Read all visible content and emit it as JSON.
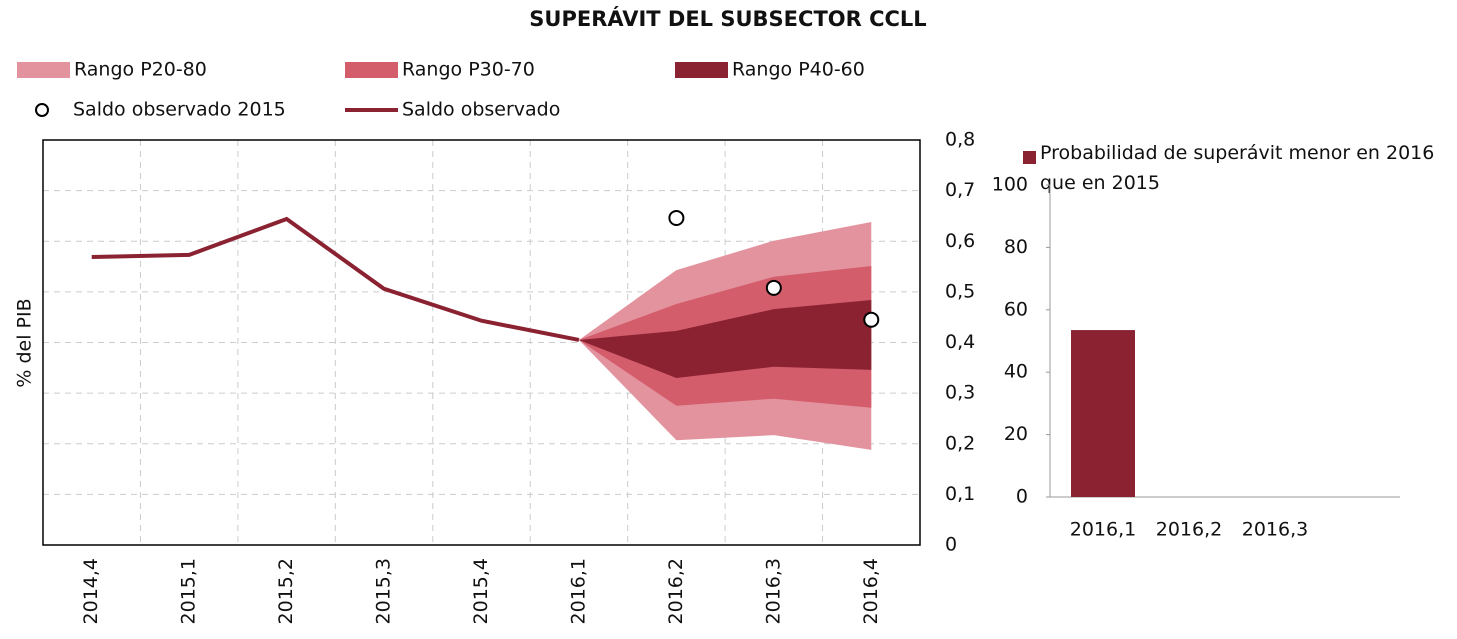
{
  "chart_data": [
    {
      "type": "fan",
      "title": "SUPERÁVIT DEL SUBSECTOR CCLL",
      "ylabel": "% del PIB",
      "categories": [
        "2014,4",
        "2015,1",
        "2015,2",
        "2015,3",
        "2015,4",
        "2016,1",
        "2016,2",
        "2016,3",
        "2016,4"
      ],
      "ylim": [
        0,
        0.8
      ],
      "yticks": [
        {
          "value": 0,
          "label": "0"
        },
        {
          "value": 0.1,
          "label": "0,1"
        },
        {
          "value": 0.2,
          "label": "0,2"
        },
        {
          "value": 0.3,
          "label": "0,3"
        },
        {
          "value": 0.4,
          "label": "0,4"
        },
        {
          "value": 0.5,
          "label": "0,5"
        },
        {
          "value": 0.6,
          "label": "0,6"
        },
        {
          "value": 0.7,
          "label": "0,7"
        },
        {
          "value": 0.8,
          "label": "0,8"
        }
      ],
      "grid": true,
      "series": [
        {
          "name": "Rango P20-80",
          "type": "range",
          "color": "#e3939e",
          "upper": [
            null,
            null,
            null,
            null,
            null,
            0.405,
            0.543,
            0.601,
            0.638
          ],
          "lower": [
            null,
            null,
            null,
            null,
            null,
            0.405,
            0.207,
            0.217,
            0.188
          ]
        },
        {
          "name": "Rango P30-70",
          "type": "range",
          "color": "#d45d6c",
          "upper": [
            null,
            null,
            null,
            null,
            null,
            0.405,
            0.476,
            0.53,
            0.551
          ],
          "lower": [
            null,
            null,
            null,
            null,
            null,
            0.405,
            0.275,
            0.289,
            0.271
          ]
        },
        {
          "name": "Rango P40-60",
          "type": "range",
          "color": "#8b2232",
          "upper": [
            null,
            null,
            null,
            null,
            null,
            0.405,
            0.423,
            0.466,
            0.484
          ],
          "lower": [
            null,
            null,
            null,
            null,
            null,
            0.405,
            0.33,
            0.352,
            0.346
          ]
        },
        {
          "name": "Saldo observado 2015",
          "type": "scatter",
          "color": "#000000",
          "values": [
            null,
            null,
            null,
            null,
            null,
            null,
            0.646,
            0.508,
            0.445
          ]
        },
        {
          "name": "Saldo observado",
          "type": "line",
          "color": "#8b2232",
          "values": [
            0.569,
            0.573,
            0.644,
            0.506,
            0.443,
            0.405,
            null,
            null,
            null
          ]
        }
      ]
    },
    {
      "type": "bar",
      "categories": [
        "2016,1",
        "2016,2",
        "2016,3"
      ],
      "series": [
        {
          "name": "Probabilidad de superávit menor en 2016 que en 2015",
          "color": "#8b2232",
          "values": [
            53.5,
            0,
            0
          ]
        }
      ],
      "ylim": [
        0,
        100
      ],
      "yticks": [
        0,
        20,
        40,
        60,
        80,
        100
      ]
    }
  ]
}
